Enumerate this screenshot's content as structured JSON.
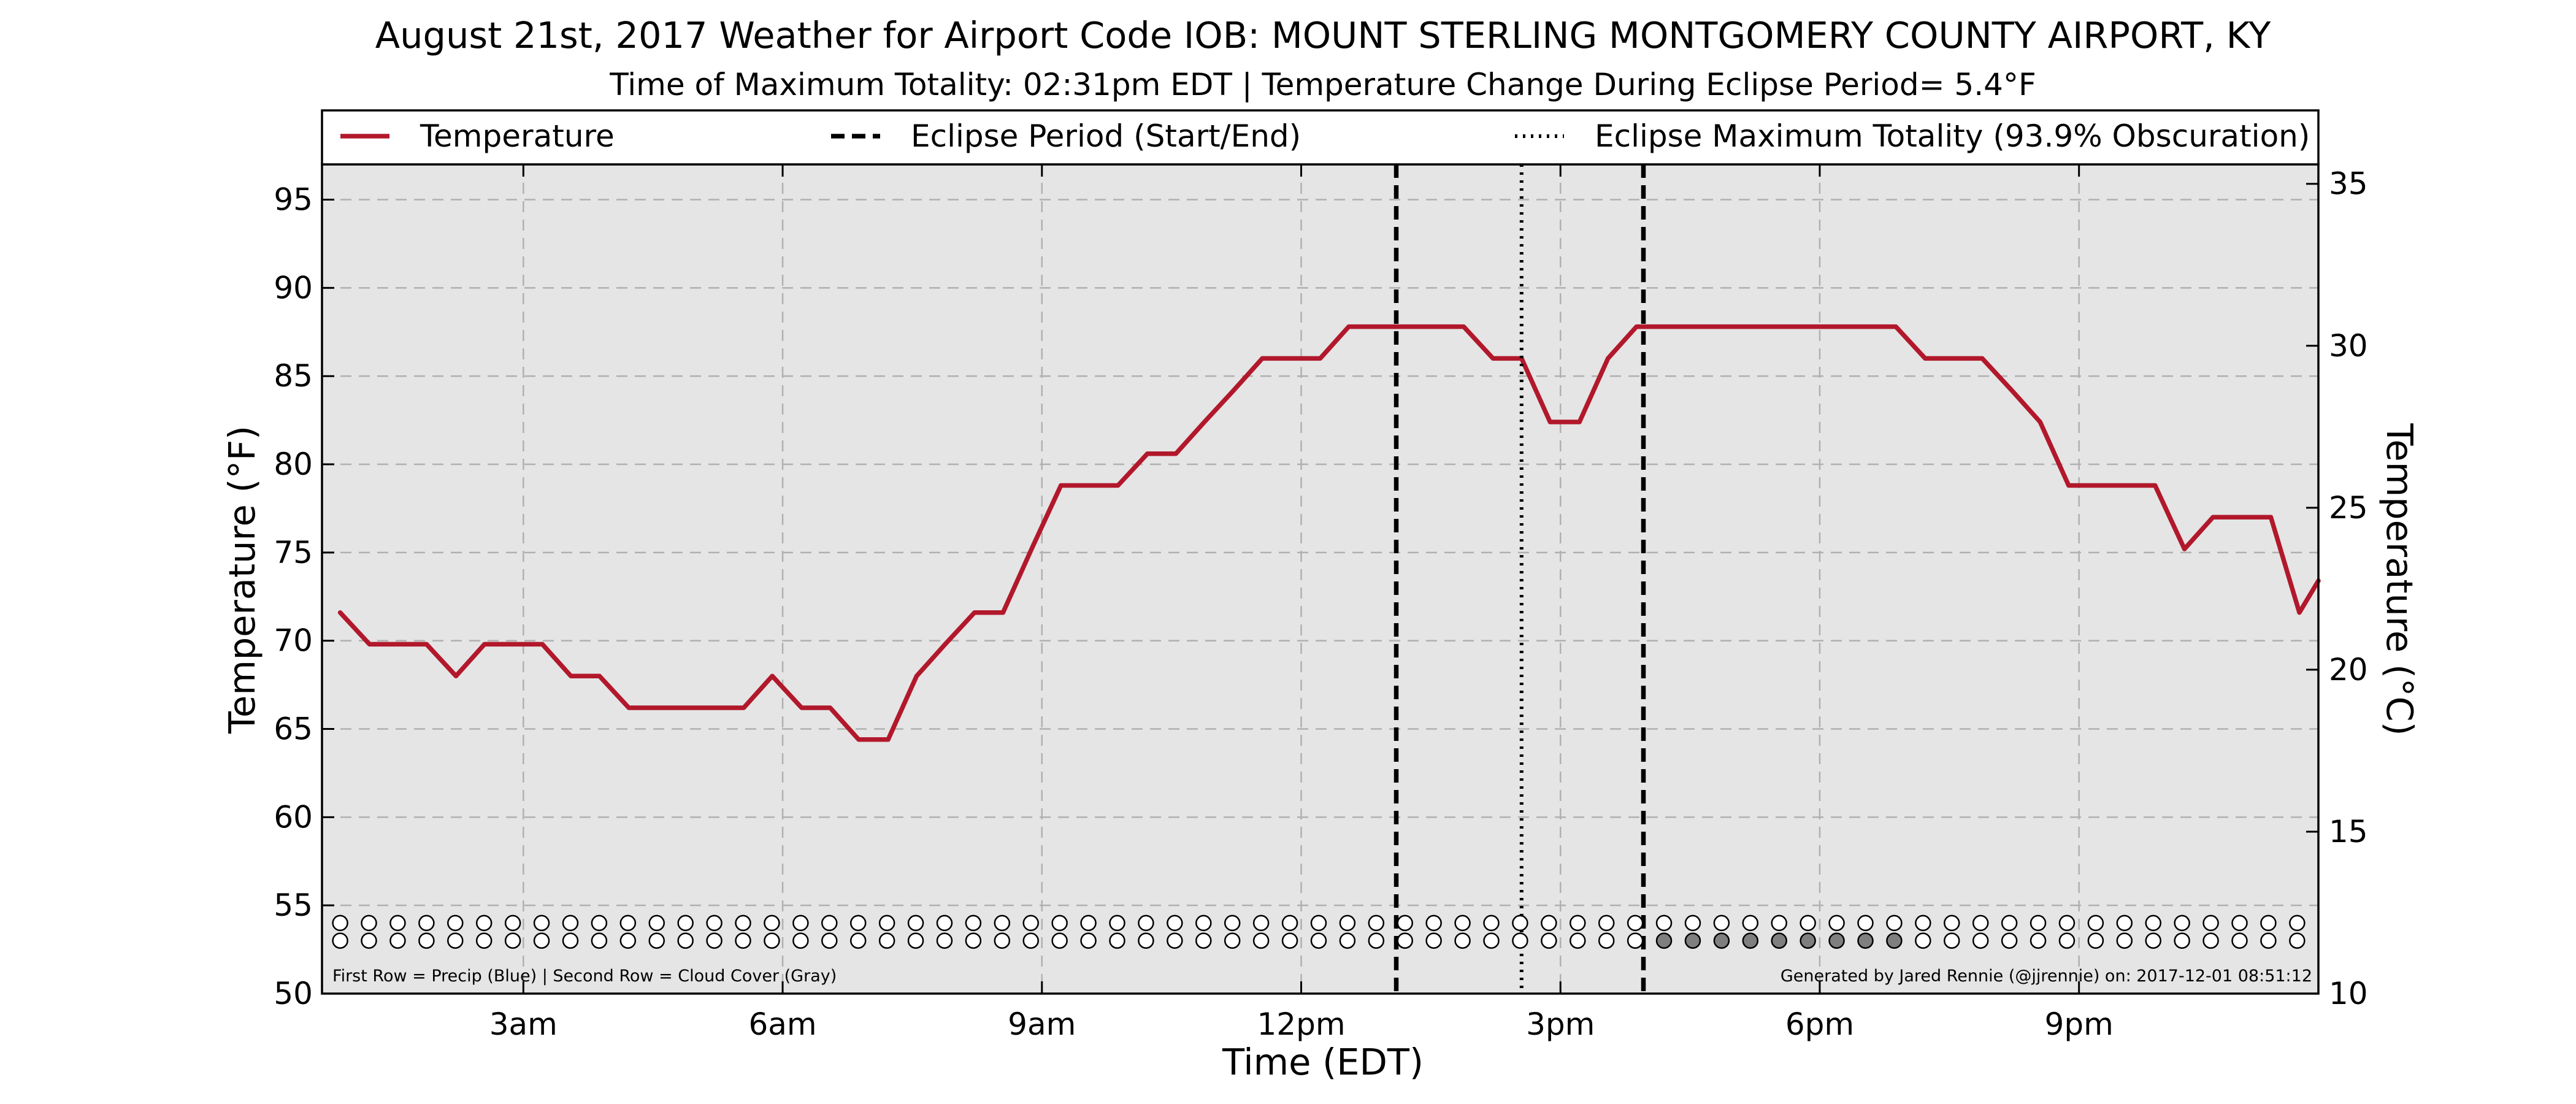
{
  "chart_data": {
    "type": "line",
    "title": "August 21st, 2017 Weather for Airport Code IOB: MOUNT STERLING MONTGOMERY COUNTY AIRPORT, KY",
    "subtitle": "Time of Maximum Totality: 02:31pm EDT | Temperature Change During Eclipse Period= 5.4°F",
    "xlabel": "Time (EDT)",
    "ylabel": "Temperature (°F)",
    "ylabel_right": "Temperature (°C)",
    "xlim": [
      0.67,
      23.77
    ],
    "ylim": [
      50,
      97
    ],
    "ylim_right": [
      10,
      35.6
    ],
    "x_ticks": [
      {
        "value": 3,
        "label": "3am"
      },
      {
        "value": 6,
        "label": "6am"
      },
      {
        "value": 9,
        "label": "9am"
      },
      {
        "value": 12,
        "label": "12pm"
      },
      {
        "value": 15,
        "label": "3pm"
      },
      {
        "value": 18,
        "label": "6pm"
      },
      {
        "value": 21,
        "label": "9pm"
      }
    ],
    "y_ticks": [
      50,
      55,
      60,
      65,
      70,
      75,
      80,
      85,
      90,
      95
    ],
    "y_ticks_right": [
      10,
      15,
      20,
      25,
      30,
      35
    ],
    "grid": true,
    "legend_position": "top",
    "legend": [
      {
        "label": "Temperature",
        "style": "solid",
        "color": "#b2182b"
      },
      {
        "label": "Eclipse Period (Start/End)",
        "style": "dashed",
        "color": "#000000"
      },
      {
        "label": "Eclipse Maximum Totality (93.9% Obscuration)",
        "style": "dotted",
        "color": "#000000"
      }
    ],
    "series": [
      {
        "name": "Temperature",
        "color": "#b2182b",
        "x": [
          0.88,
          1.22,
          1.55,
          1.88,
          2.22,
          2.55,
          2.88,
          3.22,
          3.55,
          3.88,
          4.22,
          4.55,
          4.88,
          5.22,
          5.55,
          5.88,
          6.22,
          6.55,
          6.88,
          7.22,
          7.55,
          7.88,
          8.22,
          8.55,
          8.88,
          9.22,
          9.55,
          9.88,
          10.22,
          10.55,
          10.88,
          11.22,
          11.55,
          11.88,
          12.22,
          12.55,
          12.88,
          13.22,
          13.55,
          13.88,
          14.22,
          14.55,
          14.88,
          15.22,
          15.55,
          15.88,
          16.22,
          16.55,
          16.88,
          17.22,
          17.55,
          17.88,
          18.22,
          18.55,
          18.88,
          19.22,
          19.55,
          19.88,
          20.22,
          20.55,
          20.88,
          21.22,
          21.55,
          21.88,
          22.22,
          22.55,
          22.88,
          23.22,
          23.55,
          23.77
        ],
        "y": [
          71.6,
          69.8,
          69.8,
          69.8,
          68.0,
          69.8,
          69.8,
          69.8,
          68.0,
          68.0,
          66.2,
          66.2,
          66.2,
          66.2,
          66.2,
          68.0,
          66.2,
          66.2,
          64.4,
          64.4,
          68.0,
          69.8,
          71.6,
          71.6,
          75.2,
          78.8,
          78.8,
          78.8,
          80.6,
          80.6,
          82.4,
          84.2,
          86.0,
          86.0,
          86.0,
          87.8,
          87.8,
          87.8,
          87.8,
          87.8,
          86.0,
          86.0,
          82.4,
          82.4,
          86.0,
          87.8,
          87.8,
          87.8,
          87.8,
          87.8,
          87.8,
          87.8,
          87.8,
          87.8,
          87.8,
          86.0,
          86.0,
          86.0,
          84.2,
          82.4,
          78.8,
          78.8,
          78.8,
          78.8,
          75.2,
          77.0,
          77.0,
          77.0,
          71.6,
          73.4
        ]
      }
    ],
    "eclipse_start": 13.1,
    "eclipse_max": 14.55,
    "eclipse_end": 15.96,
    "indicator_rows": {
      "precip_y": 54.0,
      "cloud_y": 53.0,
      "x_start": 0.88,
      "x_step": 0.333,
      "count": 69,
      "precip": [],
      "cloud_filled_indices": [
        46,
        47,
        48,
        49,
        50,
        51,
        52,
        53,
        54
      ],
      "filled_color": "#7f7f7f",
      "empty_color": "#ffffff"
    },
    "bottom_left_note": "First Row = Precip (Blue) | Second Row = Cloud Cover (Gray)",
    "bottom_right_note": "Generated by Jared Rennie (@jjrennie) on: 2017-12-01 08:51:12",
    "colors": {
      "plot_background": "#e5e5e5",
      "temperature_line": "#b2182b",
      "grid": "#b0b0b0"
    }
  }
}
